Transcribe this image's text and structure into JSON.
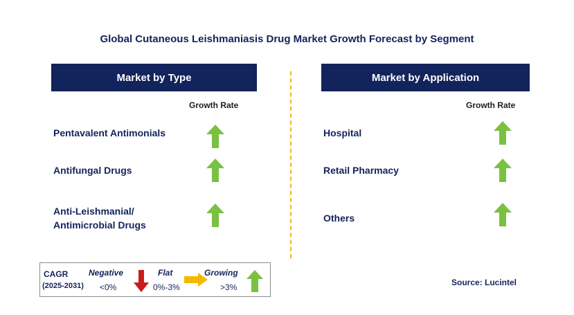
{
  "title": "Global Cutaneous Leishmaniasis Drug Market Growth Forecast by Segment",
  "left_panel": {
    "header": "Market by Type",
    "growth_rate_label": "Growth Rate",
    "segments": [
      {
        "line1": "Pentavalent Antimonials",
        "line2": "",
        "trend": "growing"
      },
      {
        "line1": "Antifungal Drugs",
        "line2": "",
        "trend": "growing"
      },
      {
        "line1": "Anti-Leishmanial/",
        "line2": "Antimicrobial Drugs",
        "trend": "growing"
      }
    ]
  },
  "right_panel": {
    "header": "Market by Application",
    "growth_rate_label": "Growth Rate",
    "segments": [
      {
        "line1": "Hospital",
        "trend": "growing"
      },
      {
        "line1": "Retail Pharmacy",
        "trend": "growing"
      },
      {
        "line1": "Others",
        "trend": "growing"
      }
    ]
  },
  "legend": {
    "cagr": "CAGR",
    "period": "(2025-2031)",
    "negative": {
      "label": "Negative",
      "range": "<0%",
      "icon": "down-arrow-icon",
      "color": "#cc1a1a"
    },
    "flat": {
      "label": "Flat",
      "range": "0%-3%",
      "icon": "right-arrow-icon",
      "color": "#f5b800"
    },
    "growing": {
      "label": "Growing",
      "range": ">3%",
      "icon": "up-arrow-icon",
      "color": "#7ac143"
    }
  },
  "source": "Source: Lucintel",
  "colors": {
    "header_bg": "#13235b",
    "divider": "#f2b41c",
    "growing_arrow": "#7ac143"
  }
}
